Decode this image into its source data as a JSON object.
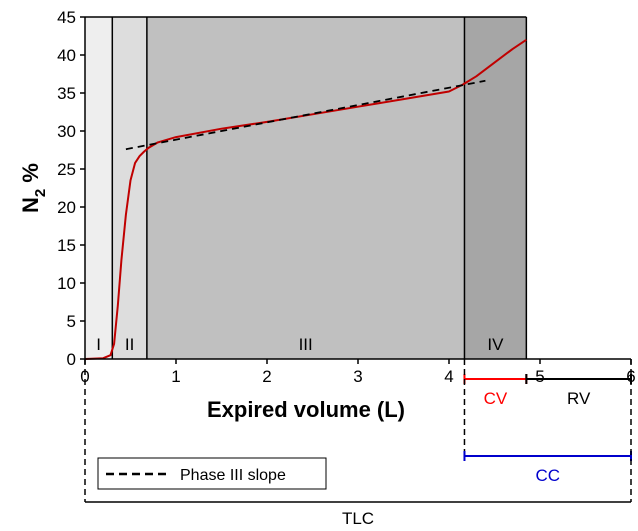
{
  "chart_data": {
    "type": "line",
    "xlabel": "Expired volume (L)",
    "ylabel_main": "N",
    "ylabel_sub": "2",
    "ylabel_suffix": " %",
    "xlim": [
      0,
      6
    ],
    "ylim": [
      0,
      45
    ],
    "x_ticks": [
      0,
      1,
      2,
      3,
      4,
      5,
      6
    ],
    "y_ticks": [
      0,
      5,
      10,
      15,
      20,
      25,
      30,
      35,
      40,
      45
    ],
    "phases": [
      {
        "label": "I",
        "start": 0,
        "end": 0.3,
        "color": "#eeeeee"
      },
      {
        "label": "II",
        "start": 0.3,
        "end": 0.68,
        "color": "#dddddd"
      },
      {
        "label": "III",
        "start": 0.68,
        "end": 4.17,
        "color": "#c0c0c0"
      },
      {
        "label": "IV",
        "start": 4.17,
        "end": 4.85,
        "color": "#a6a6a6"
      }
    ],
    "series": [
      {
        "color": "#c00000",
        "x": [
          0.0,
          0.2,
          0.28,
          0.32,
          0.36,
          0.4,
          0.45,
          0.5,
          0.55,
          0.6,
          0.65,
          0.7,
          0.8,
          1.0,
          1.5,
          2.0,
          2.5,
          3.0,
          3.5,
          4.0,
          4.15,
          4.3,
          4.5,
          4.7,
          4.85
        ],
        "y": [
          0.0,
          0.1,
          0.5,
          2.0,
          7.0,
          13.0,
          19.0,
          23.5,
          25.8,
          26.7,
          27.3,
          27.8,
          28.5,
          29.2,
          30.3,
          31.2,
          32.2,
          33.2,
          34.2,
          35.2,
          36.1,
          37.2,
          39.0,
          40.8,
          42.0
        ]
      },
      {
        "name": "Phase III slope",
        "dashed": true,
        "color": "#000000",
        "x": [
          0.45,
          4.4
        ],
        "y": [
          27.6,
          36.6
        ]
      }
    ],
    "legend": {
      "entries": [
        "Phase III slope"
      ],
      "position": "bottom-left"
    },
    "brackets": [
      {
        "label": "CV",
        "start": 4.17,
        "end": 4.85,
        "color": "#ff0000"
      },
      {
        "label": "RV",
        "start": 4.85,
        "end": 6,
        "color": "#000000"
      },
      {
        "label": "CC",
        "start": 4.17,
        "end": 6,
        "color": "#0000cc"
      },
      {
        "label": "TLC",
        "start": 0,
        "end": 6,
        "color": "#000000"
      }
    ]
  }
}
